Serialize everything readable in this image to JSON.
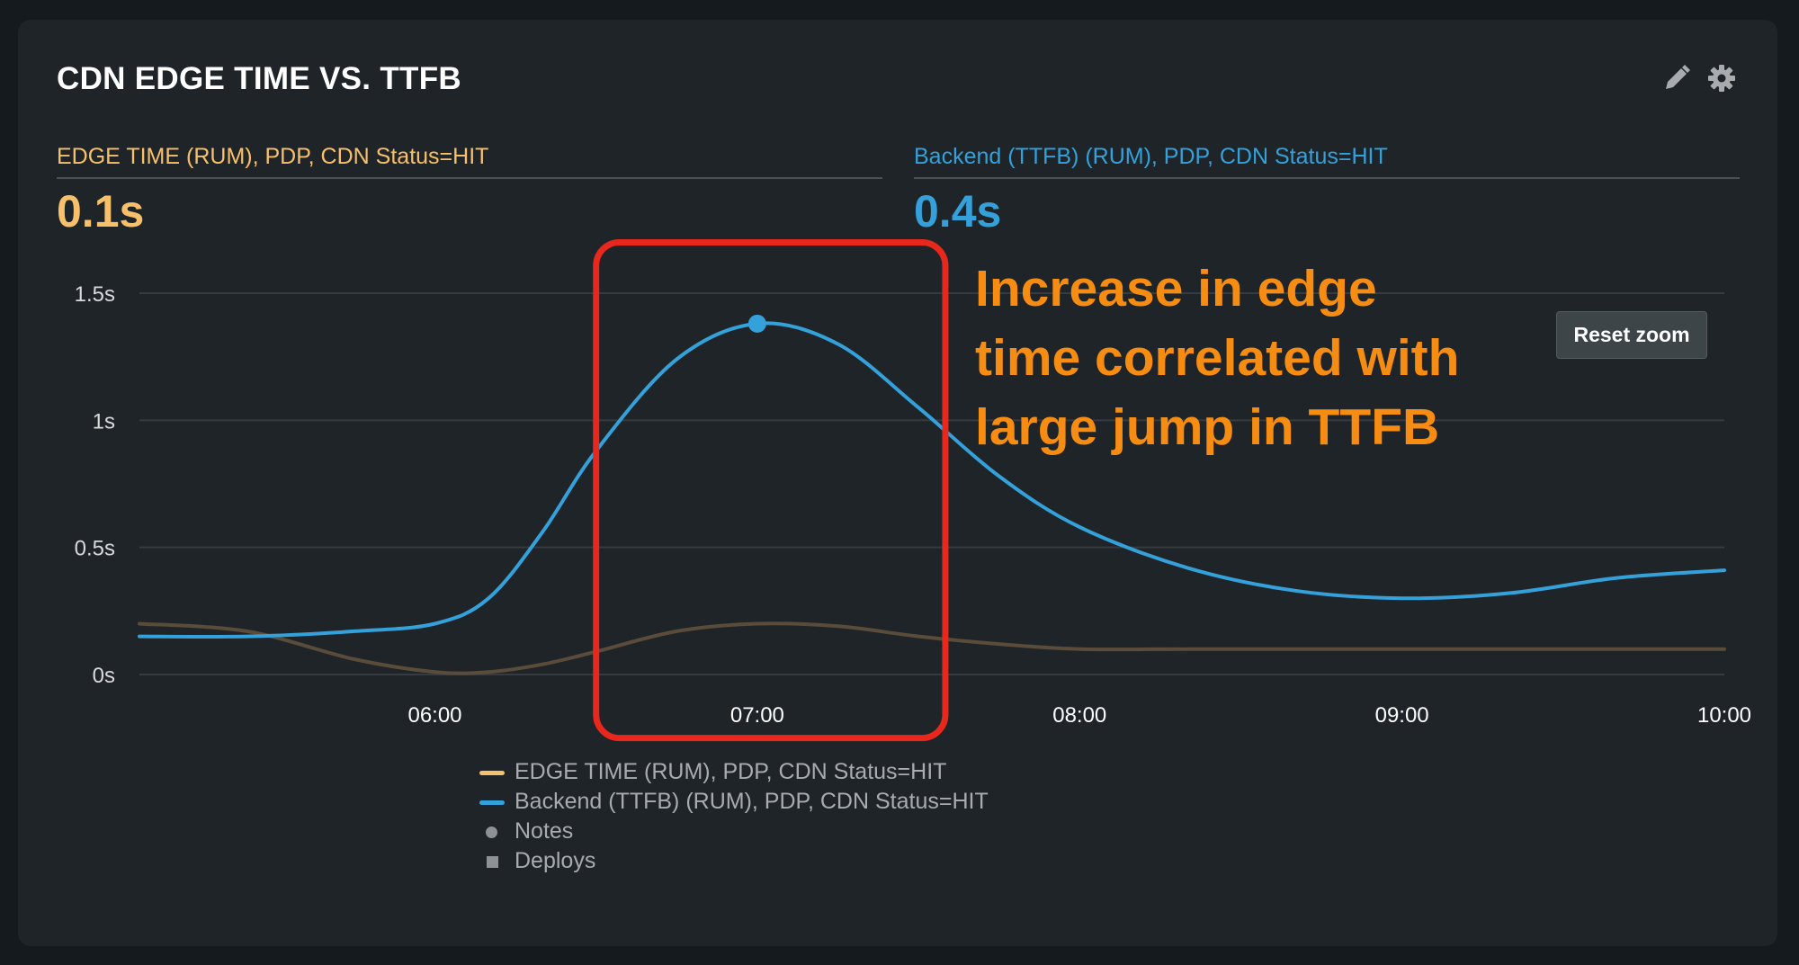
{
  "widget": {
    "title": "CDN EDGE TIME VS. TTFB",
    "icons": [
      "pencil-icon",
      "gear-icon"
    ]
  },
  "metrics": [
    {
      "label": "EDGE TIME (RUM), PDP, CDN Status=HIT",
      "value": "0.1s",
      "color": "#f8c06a"
    },
    {
      "label": "Backend (TTFB) (RUM), PDP, CDN Status=HIT",
      "value": "0.4s",
      "color": "#34a1db"
    }
  ],
  "reset_zoom_label": "Reset zoom",
  "annotation": {
    "lines": [
      "Increase in edge",
      "time correlated with",
      "large jump in TTFB"
    ],
    "color": "#f68d12",
    "highlight_color": "#e8281d"
  },
  "legend": {
    "items": [
      {
        "label": "EDGE TIME (RUM), PDP, CDN Status=HIT",
        "symbol": "line",
        "color": "#f8c06a"
      },
      {
        "label": "Backend (TTFB) (RUM), PDP, CDN Status=HIT",
        "symbol": "line",
        "color": "#34a1db"
      },
      {
        "label": "Notes",
        "symbol": "circle",
        "color": "#8f9295"
      },
      {
        "label": "Deploys",
        "symbol": "square",
        "color": "#8f9295"
      }
    ]
  },
  "chart_data": {
    "type": "line",
    "title": "CDN EDGE TIME VS. TTFB",
    "xlabel": "",
    "ylabel": "",
    "x": [
      "05:05",
      "05:25",
      "05:45",
      "06:00",
      "06:10",
      "06:20",
      "06:30",
      "06:45",
      "07:00",
      "07:15",
      "07:30",
      "07:45",
      "08:00",
      "08:20",
      "08:40",
      "09:00",
      "09:20",
      "09:40",
      "10:00"
    ],
    "xlim": [
      "05:05",
      "10:00"
    ],
    "xticks": [
      "06:00",
      "07:00",
      "08:00",
      "09:00",
      "10:00"
    ],
    "ylim": [
      0,
      1.5
    ],
    "yticks": [
      0,
      0.5,
      1,
      1.5
    ],
    "ytick_labels": [
      "0s",
      "0.5s",
      "1s",
      "1.5s"
    ],
    "grid": true,
    "series": [
      {
        "name": "EDGE TIME (RUM), PDP, CDN Status=HIT",
        "color": "#5a4c3a",
        "values": [
          0.2,
          0.17,
          0.06,
          0.01,
          0.01,
          0.04,
          0.09,
          0.17,
          0.2,
          0.19,
          0.15,
          0.12,
          0.1,
          0.1,
          0.1,
          0.1,
          0.1,
          0.1,
          0.1
        ]
      },
      {
        "name": "Backend (TTFB) (RUM), PDP, CDN Status=HIT",
        "color": "#34a1db",
        "values": [
          0.15,
          0.15,
          0.17,
          0.2,
          0.3,
          0.56,
          0.88,
          1.24,
          1.38,
          1.3,
          1.05,
          0.78,
          0.58,
          0.42,
          0.33,
          0.3,
          0.32,
          0.38,
          0.41
        ]
      }
    ],
    "highlight_point": {
      "series": 1,
      "x": "07:00",
      "y": 1.38
    },
    "highlight_range": {
      "x": [
        "06:30",
        "07:35"
      ],
      "y": [
        -0.25,
        1.7
      ]
    }
  }
}
